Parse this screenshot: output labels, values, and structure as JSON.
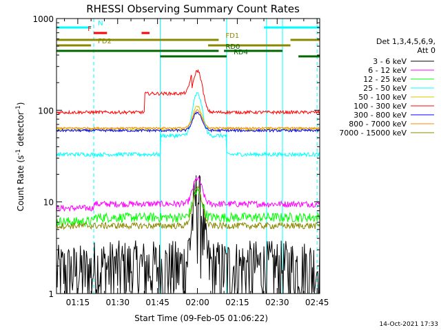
{
  "chart_data": {
    "type": "line",
    "title": "RHESSI Observing Summary Count Rates",
    "xlabel": "Start Time (09-Feb-05 01:06:22)",
    "ylabel": "Count Rate (s",
    "ylabel_sup": "-1",
    "ylabel_mid": " detector",
    "ylabel_end": ")",
    "y_scale": "log",
    "ylim": [
      1,
      1000
    ],
    "xlim_minutes": [
      67,
      166
    ],
    "x_ticks": [
      {
        "label": "01:15",
        "minute": 75
      },
      {
        "label": "01:30",
        "minute": 90
      },
      {
        "label": "01:45",
        "minute": 105
      },
      {
        "label": "02:00",
        "minute": 120
      },
      {
        "label": "02:15",
        "minute": 135
      },
      {
        "label": "02:30",
        "minute": 150
      },
      {
        "label": "02:45",
        "minute": 165
      }
    ],
    "y_ticks": [
      {
        "label": "1",
        "value": 1
      },
      {
        "label": "10",
        "value": 10
      },
      {
        "label": "100",
        "value": 100
      },
      {
        "label": "1000",
        "value": 1000
      }
    ],
    "legend": {
      "header_line1": "Det 1,3,4,5,6,9,",
      "header_line2": "Att 0",
      "placement": "right"
    },
    "series": [
      {
        "name": "3 - 6 keV",
        "color": "#000000",
        "base": 2.0,
        "peak": 12,
        "noise": 0.9
      },
      {
        "name": "6 - 12 keV",
        "color": "#ff00ff",
        "base": 9.5,
        "peak": 18,
        "noise": 0.08
      },
      {
        "name": "12 - 25 keV",
        "color": "#00ff00",
        "base": 6.8,
        "peak": 13,
        "noise": 0.12
      },
      {
        "name": "25 - 50 keV",
        "color": "#00ffff",
        "base": 33,
        "peak": 95,
        "noise": 0.05
      },
      {
        "name": "50 - 100 keV",
        "color": "#cccc00",
        "base": 62,
        "peak": 110,
        "noise": 0.03
      },
      {
        "name": "100 - 300 keV",
        "color": "#ff0000",
        "base": 95,
        "peak": 270,
        "noise": 0.04
      },
      {
        "name": "300 - 800 keV",
        "color": "#0000ff",
        "base": 60,
        "peak": 95,
        "noise": 0.03
      },
      {
        "name": "800 - 7000 keV",
        "color": "#ff8800",
        "base": 64,
        "peak": 100,
        "noise": 0.02
      },
      {
        "name": "7000 - 15000 keV",
        "color": "#888800",
        "base": 5.5,
        "peak": 14,
        "noise": 0.08
      }
    ],
    "flags": [
      {
        "label": "N",
        "color": "#00ffff",
        "segments": [
          [
            67,
            80
          ],
          [
            145,
            166
          ]
        ]
      },
      {
        "label": "F",
        "color": "#ff0000",
        "segments": [
          [
            81,
            86
          ],
          [
            99,
            102
          ]
        ]
      },
      {
        "label": "FD1",
        "color": "#888800",
        "segments": [
          [
            67,
            128
          ],
          [
            155,
            166
          ]
        ]
      },
      {
        "label": "FD2",
        "color": "#888800",
        "segments": [
          [
            67,
            80
          ],
          [
            124,
            155
          ]
        ]
      },
      {
        "label": "RD0",
        "color": "#006600",
        "segments": [
          [
            67,
            128
          ],
          [
            130,
            152
          ]
        ]
      },
      {
        "label": "RD4",
        "color": "#006600",
        "segments": [
          [
            106,
            131
          ],
          [
            158,
            166
          ]
        ]
      }
    ],
    "dashed_lines_minutes": [
      81,
      165
    ],
    "solid_lines_minutes": [
      67,
      106,
      131,
      146,
      152
    ]
  },
  "footer": {
    "date": "14-Oct-2021 17:33"
  }
}
